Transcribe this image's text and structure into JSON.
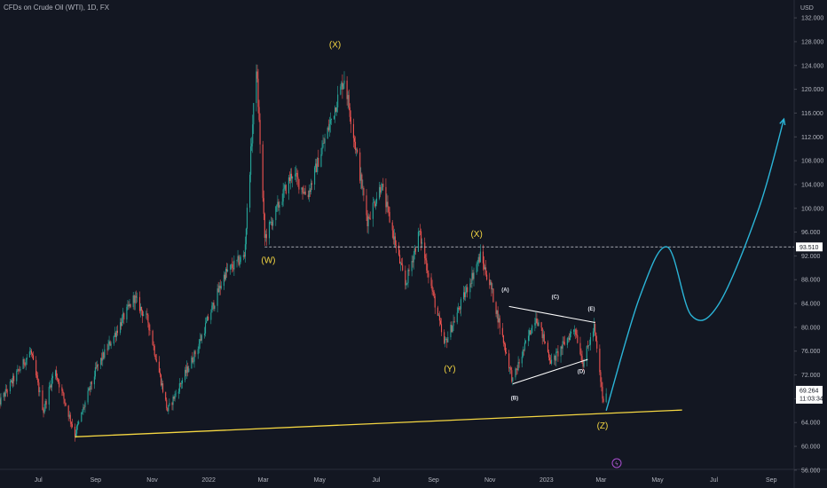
{
  "header": {
    "title": "CFDs on Crude Oil (WTI), 1D, FX"
  },
  "colors": {
    "background": "#131722",
    "up_candle": "#26a69a",
    "down_candle": "#ef5350",
    "support_line": "#f5d742",
    "projection": "#2bb5d8",
    "triangle": "#ffffff",
    "wave_label": "#f5d742",
    "current_tag": "#ffffff",
    "level_tag": "#ffffff"
  },
  "chart_data": {
    "type": "candlestick",
    "currency": "USD",
    "x_ticks": [
      "Jul",
      "Sep",
      "Nov",
      "2022",
      "Mar",
      "May",
      "Jul",
      "Sep",
      "Nov",
      "2023",
      "Mar",
      "May",
      "Jul",
      "Sep"
    ],
    "y_ticks": [
      "132.000",
      "128.000",
      "124.000",
      "120.000",
      "116.000",
      "112.000",
      "108.000",
      "104.000",
      "100.000",
      "96.000",
      "92.000",
      "88.000",
      "84.000",
      "80.000",
      "76.000",
      "72.000",
      "68.000",
      "64.000",
      "60.000",
      "56.000"
    ],
    "ylim": [
      53,
      135
    ],
    "price_anchors": [
      {
        "date": "2021-06-01",
        "price": 67
      },
      {
        "date": "2021-07-06",
        "price": 76
      },
      {
        "date": "2021-07-20",
        "price": 66
      },
      {
        "date": "2021-08-01",
        "price": 73
      },
      {
        "date": "2021-08-23",
        "price": 62
      },
      {
        "date": "2021-09-15",
        "price": 73
      },
      {
        "date": "2021-10-26",
        "price": 85
      },
      {
        "date": "2021-11-10",
        "price": 81
      },
      {
        "date": "2021-12-01",
        "price": 66
      },
      {
        "date": "2022-01-01",
        "price": 76
      },
      {
        "date": "2022-02-01",
        "price": 89
      },
      {
        "date": "2022-02-22",
        "price": 92
      },
      {
        "date": "2022-03-07",
        "price": 124
      },
      {
        "date": "2022-03-16",
        "price": 95
      },
      {
        "date": "2022-04-15",
        "price": 106
      },
      {
        "date": "2022-05-01",
        "price": 102
      },
      {
        "date": "2022-06-10",
        "price": 122
      },
      {
        "date": "2022-07-05",
        "price": 98
      },
      {
        "date": "2022-07-20",
        "price": 104
      },
      {
        "date": "2022-08-15",
        "price": 87
      },
      {
        "date": "2022-08-30",
        "price": 96
      },
      {
        "date": "2022-09-26",
        "price": 77
      },
      {
        "date": "2022-11-04",
        "price": 92
      },
      {
        "date": "2022-11-15",
        "price": 87
      },
      {
        "date": "2022-12-09",
        "price": 71
      },
      {
        "date": "2023-01-03",
        "price": 82
      },
      {
        "date": "2023-01-20",
        "price": 74
      },
      {
        "date": "2023-02-14",
        "price": 80
      },
      {
        "date": "2023-02-23",
        "price": 74
      },
      {
        "date": "2023-03-07",
        "price": 80
      },
      {
        "date": "2023-03-17",
        "price": 67
      },
      {
        "date": "2023-03-20",
        "price": 69.3
      }
    ],
    "support_line": [
      {
        "date": "2021-08-23",
        "price": 61.6
      },
      {
        "date": "2023-06-10",
        "price": 66.1
      }
    ],
    "triangle_upper": [
      {
        "date": "2022-12-05",
        "price": 83.5
      },
      {
        "date": "2023-03-08",
        "price": 80.8
      }
    ],
    "triangle_lower": [
      {
        "date": "2022-12-09",
        "price": 70.5
      },
      {
        "date": "2023-02-28",
        "price": 74.6
      }
    ],
    "horizontal_level": {
      "date_from": "2022-03-16",
      "price": 93.51
    },
    "projection_path": [
      {
        "date": "2023-03-20",
        "price": 66
      },
      {
        "date": "2023-04-25",
        "price": 85
      },
      {
        "date": "2023-05-25",
        "price": 93.5
      },
      {
        "date": "2023-06-20",
        "price": 82
      },
      {
        "date": "2023-07-20",
        "price": 84
      },
      {
        "date": "2023-09-01",
        "price": 100
      },
      {
        "date": "2023-09-28",
        "price": 115
      }
    ],
    "wave_labels": [
      {
        "text": "(X)",
        "date": "2022-05-31",
        "price": 127,
        "size": "big"
      },
      {
        "text": "(W)",
        "date": "2022-03-20",
        "price": 90.8,
        "size": "big"
      },
      {
        "text": "(X)",
        "date": "2022-10-31",
        "price": 95.2,
        "size": "big"
      },
      {
        "text": "(Y)",
        "date": "2022-10-02",
        "price": 72.5,
        "size": "big"
      },
      {
        "text": "(Z)",
        "date": "2023-03-16",
        "price": 63,
        "size": "big"
      },
      {
        "text": "(A)",
        "date": "2022-12-01",
        "price": 86,
        "size": "small"
      },
      {
        "text": "(B)",
        "date": "2022-12-11",
        "price": 67.8,
        "size": "small"
      },
      {
        "text": "(C)",
        "date": "2023-01-24",
        "price": 84.8,
        "size": "small"
      },
      {
        "text": "(D)",
        "date": "2023-02-21",
        "price": 72.3,
        "size": "small"
      },
      {
        "text": "(E)",
        "date": "2023-03-04",
        "price": 82.8,
        "size": "small"
      }
    ],
    "level_tag": {
      "price": 93.51,
      "label": "93.510"
    },
    "current_tag": {
      "price": 69.264,
      "label": "69.264",
      "countdown": "11:03:34"
    }
  }
}
